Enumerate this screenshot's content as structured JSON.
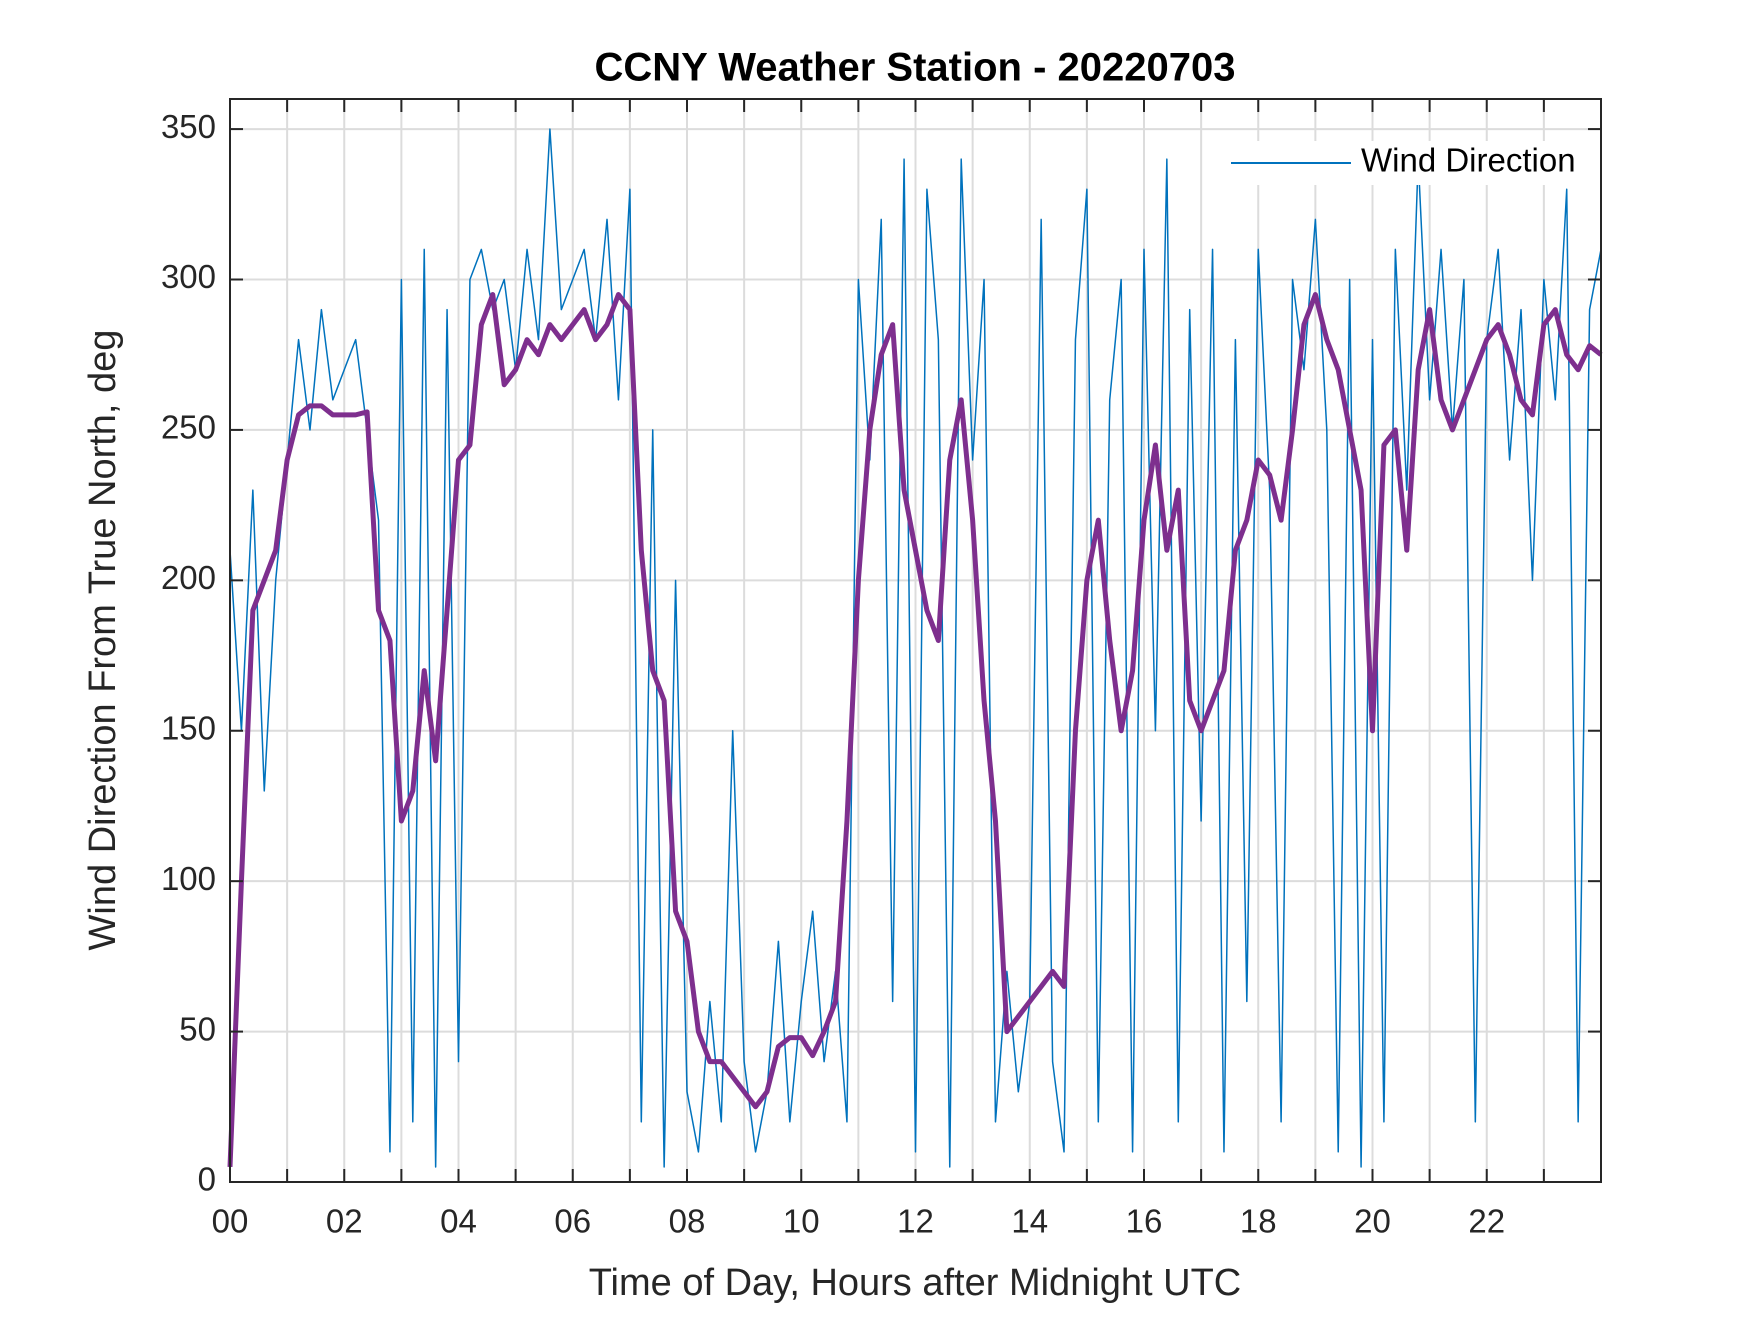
{
  "chart_data": {
    "type": "line",
    "title": "CCNY Weather Station - 20220703",
    "xlabel": "Time of Day, Hours after Midnight UTC",
    "ylabel": "Wind Direction From True North, deg",
    "xlim": [
      0,
      24
    ],
    "ylim": [
      0,
      360
    ],
    "xticks": [
      {
        "value": 0,
        "label": "00"
      },
      {
        "value": 2,
        "label": "02"
      },
      {
        "value": 4,
        "label": "04"
      },
      {
        "value": 6,
        "label": "06"
      },
      {
        "value": 8,
        "label": "08"
      },
      {
        "value": 10,
        "label": "10"
      },
      {
        "value": 12,
        "label": "12"
      },
      {
        "value": 14,
        "label": "14"
      },
      {
        "value": 16,
        "label": "16"
      },
      {
        "value": 18,
        "label": "18"
      },
      {
        "value": 20,
        "label": "20"
      },
      {
        "value": 22,
        "label": "22"
      }
    ],
    "xminorticks": [
      1,
      3,
      5,
      7,
      9,
      11,
      13,
      15,
      17,
      19,
      21,
      23
    ],
    "yticks": [
      0,
      50,
      100,
      150,
      200,
      250,
      300,
      350
    ],
    "grid": true,
    "legend": "northeast",
    "x": [
      0,
      0.2,
      0.4,
      0.6,
      0.8,
      1,
      1.2,
      1.4,
      1.6,
      1.8,
      2,
      2.2,
      2.4,
      2.6,
      2.8,
      3,
      3.2,
      3.4,
      3.6,
      3.8,
      4,
      4.2,
      4.4,
      4.6,
      4.8,
      5,
      5.2,
      5.4,
      5.6,
      5.8,
      6,
      6.2,
      6.4,
      6.6,
      6.8,
      7,
      7.2,
      7.4,
      7.6,
      7.8,
      8,
      8.2,
      8.4,
      8.6,
      8.8,
      9,
      9.2,
      9.4,
      9.6,
      9.8,
      10,
      10.2,
      10.4,
      10.6,
      10.8,
      11,
      11.2,
      11.4,
      11.6,
      11.8,
      12,
      12.2,
      12.4,
      12.6,
      12.8,
      13,
      13.2,
      13.4,
      13.6,
      13.8,
      14,
      14.2,
      14.4,
      14.6,
      14.8,
      15,
      15.2,
      15.4,
      15.6,
      15.8,
      16,
      16.2,
      16.4,
      16.6,
      16.8,
      17,
      17.2,
      17.4,
      17.6,
      17.8,
      18,
      18.2,
      18.4,
      18.6,
      18.8,
      19,
      19.2,
      19.4,
      19.6,
      19.8,
      20,
      20.2,
      20.4,
      20.6,
      20.8,
      21,
      21.2,
      21.4,
      21.6,
      21.8,
      22,
      22.2,
      22.4,
      22.6,
      22.8,
      23,
      23.2,
      23.4,
      23.6,
      23.8,
      24
    ],
    "series": [
      {
        "name": "Wind Direction",
        "color": "#0072bd",
        "width": 1.5,
        "values": [
          210,
          150,
          230,
          130,
          200,
          240,
          280,
          250,
          290,
          260,
          270,
          280,
          250,
          220,
          10,
          300,
          20,
          310,
          5,
          290,
          40,
          300,
          310,
          290,
          300,
          270,
          310,
          280,
          350,
          290,
          300,
          310,
          280,
          320,
          260,
          330,
          20,
          250,
          5,
          200,
          30,
          10,
          60,
          20,
          150,
          40,
          10,
          30,
          80,
          20,
          60,
          90,
          40,
          70,
          20,
          300,
          240,
          320,
          60,
          340,
          10,
          330,
          280,
          5,
          340,
          240,
          300,
          20,
          70,
          30,
          60,
          320,
          40,
          10,
          280,
          330,
          20,
          260,
          300,
          10,
          310,
          150,
          340,
          20,
          290,
          120,
          310,
          10,
          280,
          60,
          310,
          230,
          20,
          300,
          270,
          320,
          250,
          10,
          300,
          5,
          280,
          20,
          310,
          230,
          340,
          260,
          310,
          250,
          300,
          20,
          280,
          310,
          240,
          290,
          200,
          300,
          260,
          330,
          20,
          290,
          310
        ]
      },
      {
        "color": "#7e2f8e",
        "width": 5,
        "values": [
          5,
          100,
          190,
          200,
          210,
          240,
          255,
          258,
          258,
          255,
          255,
          255,
          256,
          190,
          180,
          120,
          130,
          170,
          140,
          190,
          240,
          245,
          285,
          295,
          265,
          270,
          280,
          275,
          285,
          280,
          285,
          290,
          280,
          285,
          295,
          290,
          210,
          170,
          160,
          90,
          80,
          50,
          40,
          40,
          35,
          30,
          25,
          30,
          45,
          48,
          48,
          42,
          50,
          60,
          120,
          200,
          250,
          275,
          285,
          230,
          210,
          190,
          180,
          240,
          260,
          220,
          160,
          120,
          50,
          55,
          60,
          65,
          70,
          65,
          150,
          200,
          220,
          180,
          150,
          170,
          220,
          245,
          210,
          230,
          160,
          150,
          160,
          170,
          210,
          220,
          240,
          235,
          220,
          250,
          285,
          295,
          280,
          270,
          250,
          230,
          150,
          245,
          250,
          210,
          270,
          290,
          260,
          250,
          260,
          270,
          280,
          285,
          275,
          260,
          255,
          285,
          290,
          275,
          270,
          278,
          275
        ]
      }
    ]
  }
}
